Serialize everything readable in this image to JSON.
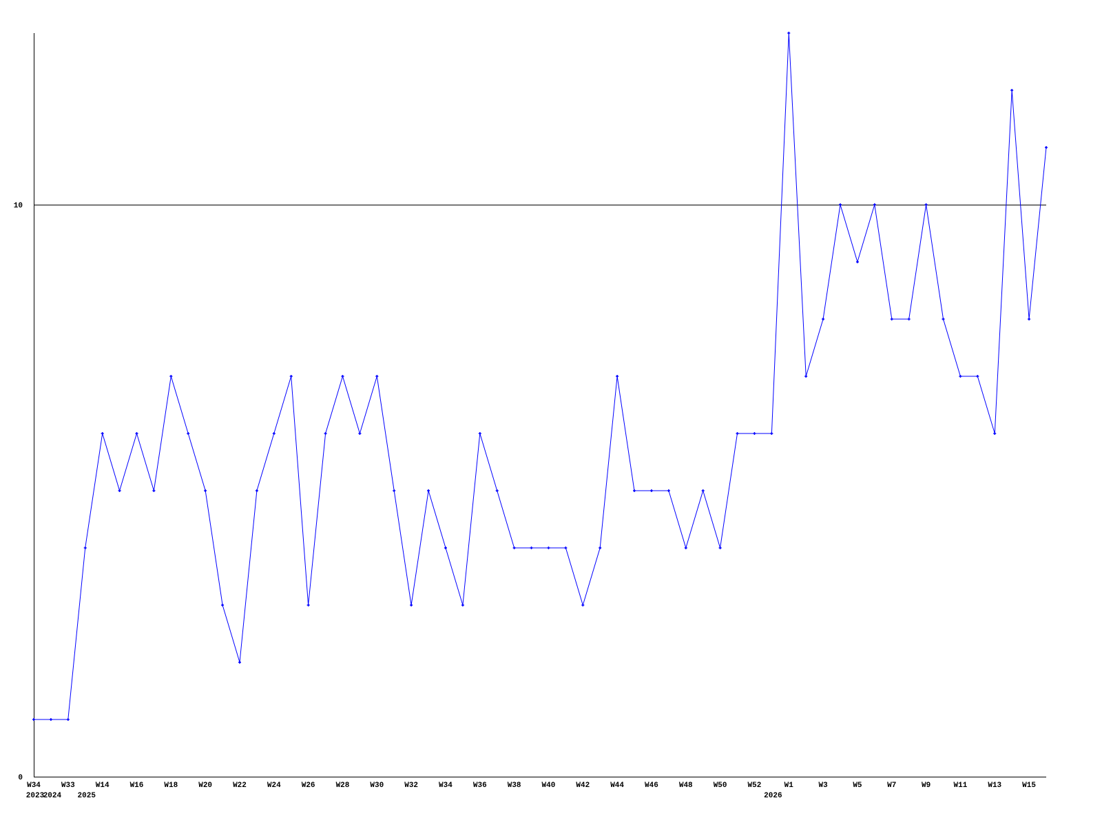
{
  "chart_data": {
    "type": "line",
    "title": "",
    "xlabel": "",
    "ylabel": "",
    "ylim": [
      0,
      13
    ],
    "yticks": [
      "0",
      "10"
    ],
    "ytick_values": [
      0,
      10
    ],
    "grid": false,
    "reference_line_value": 10,
    "series_color": "#0000ff",
    "values": [
      1,
      1,
      1,
      4,
      6,
      5,
      6,
      5,
      7,
      6,
      5,
      3,
      2,
      5,
      6,
      7,
      3,
      6,
      7,
      6,
      7,
      5,
      3,
      5,
      4,
      3,
      6,
      5,
      4,
      4,
      4,
      4,
      3,
      4,
      7,
      5,
      5,
      5,
      4,
      5,
      4,
      6,
      6,
      6,
      13,
      7,
      8,
      10,
      9,
      10,
      8,
      8,
      10,
      8,
      7,
      7,
      6,
      12,
      8,
      11
    ],
    "xtick_labels": [
      "W34",
      "W33",
      "W14",
      "W16",
      "W18",
      "W20",
      "W22",
      "W24",
      "W26",
      "W28",
      "W30",
      "W32",
      "W34",
      "W36",
      "W38",
      "W40",
      "W42",
      "W44",
      "W46",
      "W48",
      "W50",
      "W52",
      "W1",
      "W3",
      "W5",
      "W7",
      "W9",
      "W11",
      "W13",
      "W15"
    ],
    "xtick_point_indices": [
      0,
      2,
      4,
      6,
      8,
      10,
      12,
      14,
      16,
      18,
      20,
      22,
      24,
      26,
      28,
      30,
      32,
      34,
      36,
      38,
      40,
      42,
      44,
      46,
      48,
      50,
      52,
      54,
      56,
      58
    ],
    "year_labels": [
      {
        "label": "2023",
        "point_index": 0
      },
      {
        "label": "2024",
        "point_index": 1
      },
      {
        "label": "2025",
        "point_index": 3
      },
      {
        "label": "2026",
        "point_index": 43
      }
    ]
  }
}
